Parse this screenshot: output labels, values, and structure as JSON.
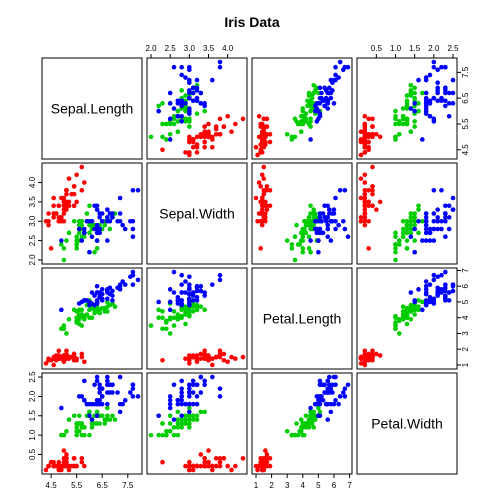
{
  "chart_data": {
    "type": "scatter",
    "title": "Iris Data",
    "variables": [
      "Sepal.Length",
      "Sepal.Width",
      "Petal.Length",
      "Petal.Width"
    ],
    "ranges": [
      [
        4.3,
        7.9
      ],
      [
        2.0,
        4.4
      ],
      [
        1.0,
        6.9
      ],
      [
        0.1,
        2.5
      ]
    ],
    "ticks": [
      [
        4.5,
        5.5,
        6.5,
        7.5
      ],
      [
        2.0,
        2.5,
        3.0,
        3.5,
        4.0
      ],
      [
        1,
        2,
        3,
        4,
        5,
        6,
        7
      ],
      [
        0.5,
        1.0,
        1.5,
        2.0,
        2.5
      ]
    ],
    "tick_labels": [
      [
        "4.5",
        "5.5",
        "6.5",
        "7.5"
      ],
      [
        "2.0",
        "2.5",
        "3.0",
        "3.5",
        "4.0"
      ],
      [
        "1",
        "2",
        "3",
        "4",
        "5",
        "6",
        "7"
      ],
      [
        "0.5",
        "1.0",
        "1.5",
        "2.0",
        "2.5"
      ]
    ],
    "series": [
      {
        "color": "#ff0000",
        "points": [
          [
            5.1,
            3.5,
            1.4,
            0.2
          ],
          [
            4.9,
            3.0,
            1.4,
            0.2
          ],
          [
            4.7,
            3.2,
            1.3,
            0.2
          ],
          [
            4.6,
            3.1,
            1.5,
            0.2
          ],
          [
            5.0,
            3.6,
            1.4,
            0.2
          ],
          [
            5.4,
            3.9,
            1.7,
            0.4
          ],
          [
            4.6,
            3.4,
            1.4,
            0.3
          ],
          [
            5.0,
            3.4,
            1.5,
            0.2
          ],
          [
            4.4,
            2.9,
            1.4,
            0.2
          ],
          [
            4.9,
            3.1,
            1.5,
            0.1
          ],
          [
            5.4,
            3.7,
            1.5,
            0.2
          ],
          [
            4.8,
            3.4,
            1.6,
            0.2
          ],
          [
            4.8,
            3.0,
            1.4,
            0.1
          ],
          [
            4.3,
            3.0,
            1.1,
            0.1
          ],
          [
            5.8,
            4.0,
            1.2,
            0.2
          ],
          [
            5.7,
            4.4,
            1.5,
            0.4
          ],
          [
            5.4,
            3.9,
            1.3,
            0.4
          ],
          [
            5.1,
            3.5,
            1.4,
            0.3
          ],
          [
            5.7,
            3.8,
            1.7,
            0.3
          ],
          [
            5.1,
            3.8,
            1.5,
            0.3
          ],
          [
            5.4,
            3.4,
            1.7,
            0.2
          ],
          [
            5.1,
            3.7,
            1.5,
            0.4
          ],
          [
            4.6,
            3.6,
            1.0,
            0.2
          ],
          [
            5.1,
            3.3,
            1.7,
            0.5
          ],
          [
            4.8,
            3.4,
            1.9,
            0.2
          ],
          [
            5.0,
            3.0,
            1.6,
            0.2
          ],
          [
            5.0,
            3.4,
            1.6,
            0.4
          ],
          [
            5.2,
            3.5,
            1.5,
            0.2
          ],
          [
            5.2,
            3.4,
            1.4,
            0.2
          ],
          [
            4.7,
            3.2,
            1.6,
            0.2
          ],
          [
            4.8,
            3.1,
            1.6,
            0.2
          ],
          [
            5.4,
            3.4,
            1.5,
            0.4
          ],
          [
            5.2,
            4.1,
            1.5,
            0.1
          ],
          [
            5.5,
            4.2,
            1.4,
            0.2
          ],
          [
            4.9,
            3.1,
            1.5,
            0.2
          ],
          [
            5.0,
            3.2,
            1.2,
            0.2
          ],
          [
            5.5,
            3.5,
            1.3,
            0.2
          ],
          [
            4.9,
            3.6,
            1.4,
            0.1
          ],
          [
            4.4,
            3.0,
            1.3,
            0.2
          ],
          [
            5.1,
            3.4,
            1.5,
            0.2
          ],
          [
            5.0,
            3.5,
            1.3,
            0.3
          ],
          [
            4.5,
            2.3,
            1.3,
            0.3
          ],
          [
            4.4,
            3.2,
            1.3,
            0.2
          ],
          [
            5.0,
            3.5,
            1.6,
            0.6
          ],
          [
            5.1,
            3.8,
            1.9,
            0.4
          ],
          [
            4.8,
            3.0,
            1.4,
            0.3
          ],
          [
            5.1,
            3.8,
            1.6,
            0.2
          ],
          [
            4.6,
            3.2,
            1.4,
            0.2
          ],
          [
            5.3,
            3.7,
            1.5,
            0.2
          ],
          [
            5.0,
            3.3,
            1.4,
            0.2
          ]
        ]
      },
      {
        "color": "#00cd00",
        "points": [
          [
            7.0,
            3.2,
            4.7,
            1.4
          ],
          [
            6.4,
            3.2,
            4.5,
            1.5
          ],
          [
            6.9,
            3.1,
            4.9,
            1.5
          ],
          [
            5.5,
            2.3,
            4.0,
            1.3
          ],
          [
            6.5,
            2.8,
            4.6,
            1.5
          ],
          [
            5.7,
            2.8,
            4.5,
            1.3
          ],
          [
            6.3,
            3.3,
            4.7,
            1.6
          ],
          [
            4.9,
            2.4,
            3.3,
            1.0
          ],
          [
            6.6,
            2.9,
            4.6,
            1.3
          ],
          [
            5.2,
            2.7,
            3.9,
            1.4
          ],
          [
            5.0,
            2.0,
            3.5,
            1.0
          ],
          [
            5.9,
            3.0,
            4.2,
            1.5
          ],
          [
            6.0,
            2.2,
            4.0,
            1.0
          ],
          [
            6.1,
            2.9,
            4.7,
            1.4
          ],
          [
            5.6,
            2.9,
            3.6,
            1.3
          ],
          [
            6.7,
            3.1,
            4.4,
            1.4
          ],
          [
            5.6,
            3.0,
            4.5,
            1.5
          ],
          [
            5.8,
            2.7,
            4.1,
            1.0
          ],
          [
            6.2,
            2.2,
            4.5,
            1.5
          ],
          [
            5.6,
            2.5,
            3.9,
            1.1
          ],
          [
            5.9,
            3.2,
            4.8,
            1.8
          ],
          [
            6.1,
            2.8,
            4.0,
            1.3
          ],
          [
            6.3,
            2.5,
            4.9,
            1.5
          ],
          [
            6.1,
            2.8,
            4.7,
            1.2
          ],
          [
            6.4,
            2.9,
            4.3,
            1.3
          ],
          [
            6.6,
            3.0,
            4.4,
            1.4
          ],
          [
            6.8,
            2.8,
            4.8,
            1.4
          ],
          [
            6.7,
            3.0,
            5.0,
            1.7
          ],
          [
            6.0,
            2.9,
            4.5,
            1.5
          ],
          [
            5.7,
            2.6,
            3.5,
            1.0
          ],
          [
            5.5,
            2.4,
            3.8,
            1.1
          ],
          [
            5.5,
            2.4,
            3.7,
            1.0
          ],
          [
            5.8,
            2.7,
            3.9,
            1.2
          ],
          [
            6.0,
            2.7,
            5.1,
            1.6
          ],
          [
            5.4,
            3.0,
            4.5,
            1.5
          ],
          [
            6.0,
            3.4,
            4.5,
            1.6
          ],
          [
            6.7,
            3.1,
            4.7,
            1.5
          ],
          [
            6.3,
            2.3,
            4.4,
            1.3
          ],
          [
            5.6,
            3.0,
            4.1,
            1.3
          ],
          [
            5.5,
            2.5,
            4.0,
            1.3
          ],
          [
            5.5,
            2.6,
            4.4,
            1.2
          ],
          [
            6.1,
            3.0,
            4.6,
            1.4
          ],
          [
            5.8,
            2.6,
            4.0,
            1.2
          ],
          [
            5.0,
            2.3,
            3.3,
            1.0
          ],
          [
            5.6,
            2.7,
            4.2,
            1.3
          ],
          [
            5.7,
            3.0,
            4.2,
            1.2
          ],
          [
            5.7,
            2.9,
            4.2,
            1.3
          ],
          [
            6.2,
            2.9,
            4.3,
            1.3
          ],
          [
            5.1,
            2.5,
            3.0,
            1.1
          ],
          [
            5.7,
            2.8,
            4.1,
            1.3
          ]
        ]
      },
      {
        "color": "#0000ff",
        "points": [
          [
            6.3,
            3.3,
            6.0,
            2.5
          ],
          [
            5.8,
            2.7,
            5.1,
            1.9
          ],
          [
            7.1,
            3.0,
            5.9,
            2.1
          ],
          [
            6.3,
            2.9,
            5.6,
            1.8
          ],
          [
            6.5,
            3.0,
            5.8,
            2.2
          ],
          [
            7.6,
            3.0,
            6.6,
            2.1
          ],
          [
            4.9,
            2.5,
            4.5,
            1.7
          ],
          [
            7.3,
            2.9,
            6.3,
            1.8
          ],
          [
            6.7,
            2.5,
            5.8,
            1.8
          ],
          [
            7.2,
            3.6,
            6.1,
            2.5
          ],
          [
            6.5,
            3.2,
            5.1,
            2.0
          ],
          [
            6.4,
            2.7,
            5.3,
            1.9
          ],
          [
            6.8,
            3.0,
            5.5,
            2.1
          ],
          [
            5.7,
            2.5,
            5.0,
            2.0
          ],
          [
            5.8,
            2.8,
            5.1,
            2.4
          ],
          [
            6.4,
            3.2,
            5.3,
            2.3
          ],
          [
            6.5,
            3.0,
            5.5,
            1.8
          ],
          [
            7.7,
            3.8,
            6.7,
            2.2
          ],
          [
            7.7,
            2.6,
            6.9,
            2.3
          ],
          [
            6.0,
            2.2,
            5.0,
            1.5
          ],
          [
            6.9,
            3.2,
            5.7,
            2.3
          ],
          [
            5.6,
            2.8,
            4.9,
            2.0
          ],
          [
            7.7,
            2.8,
            6.7,
            2.0
          ],
          [
            6.3,
            2.7,
            4.9,
            1.8
          ],
          [
            6.7,
            3.3,
            5.7,
            2.1
          ],
          [
            7.2,
            3.2,
            6.0,
            1.8
          ],
          [
            6.2,
            2.8,
            4.8,
            1.8
          ],
          [
            6.1,
            3.0,
            4.9,
            1.8
          ],
          [
            6.4,
            2.8,
            5.6,
            2.1
          ],
          [
            7.2,
            3.0,
            5.8,
            1.6
          ],
          [
            7.4,
            2.8,
            6.1,
            1.9
          ],
          [
            7.9,
            3.8,
            6.4,
            2.0
          ],
          [
            6.4,
            2.8,
            5.6,
            2.2
          ],
          [
            6.3,
            2.8,
            5.1,
            1.5
          ],
          [
            6.1,
            2.6,
            5.6,
            1.4
          ],
          [
            7.7,
            3.0,
            6.1,
            2.3
          ],
          [
            6.3,
            3.4,
            5.6,
            2.4
          ],
          [
            6.4,
            3.1,
            5.5,
            1.8
          ],
          [
            6.0,
            3.0,
            4.8,
            1.8
          ],
          [
            6.9,
            3.1,
            5.4,
            2.1
          ],
          [
            6.7,
            3.1,
            5.6,
            2.4
          ],
          [
            6.9,
            3.1,
            5.1,
            2.3
          ],
          [
            5.8,
            2.7,
            5.1,
            1.9
          ],
          [
            6.8,
            3.2,
            5.9,
            2.3
          ],
          [
            6.7,
            3.3,
            5.7,
            2.5
          ],
          [
            6.7,
            3.0,
            5.2,
            2.3
          ],
          [
            6.3,
            2.5,
            5.0,
            1.9
          ],
          [
            6.5,
            3.0,
            5.2,
            2.0
          ],
          [
            6.2,
            3.4,
            5.4,
            2.3
          ],
          [
            5.9,
            3.0,
            5.1,
            1.8
          ]
        ]
      }
    ],
    "grid": false,
    "legend": "none"
  }
}
